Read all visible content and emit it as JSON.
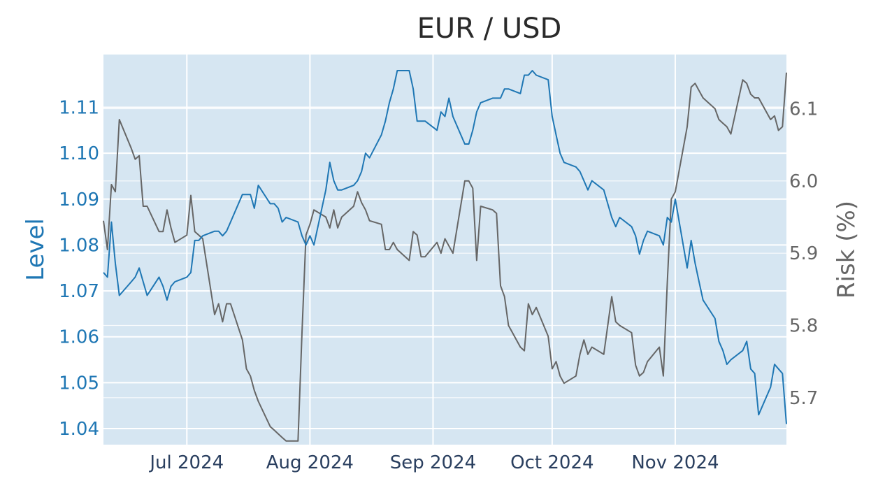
{
  "chart_data": {
    "type": "line",
    "title": "EUR / USD",
    "ylabel": "Level",
    "y2label": "Risk (%)",
    "ylim": [
      1.0365,
      1.1215
    ],
    "y2lim": [
      5.635,
      6.175
    ],
    "xlim": [
      "2024-06-10",
      "2024-11-29"
    ],
    "grid": true,
    "plot_background": "#d6e6f2",
    "yticks": [
      1.04,
      1.05,
      1.06,
      1.07,
      1.08,
      1.09,
      1.1,
      1.11
    ],
    "yticklabels": [
      "1.04",
      "1.05",
      "1.06",
      "1.07",
      "1.08",
      "1.09",
      "1.10",
      "1.11"
    ],
    "y2ticks": [
      5.7,
      5.8,
      5.9,
      6.0,
      6.1
    ],
    "y2ticklabels": [
      "5.7",
      "5.8",
      "5.9",
      "6.0",
      "6.1"
    ],
    "xticks": [
      "2024-07-01",
      "2024-08-01",
      "2024-09-01",
      "2024-10-01",
      "2024-11-01"
    ],
    "xticklabels": [
      "Jul 2024",
      "Aug 2024",
      "Sep 2024",
      "Oct 2024",
      "Nov 2024"
    ],
    "series": [
      {
        "axis": "left",
        "color": "#1f77b4",
        "x": [
          "2024-06-10",
          "2024-06-11",
          "2024-06-12",
          "2024-06-13",
          "2024-06-14",
          "2024-06-17",
          "2024-06-18",
          "2024-06-19",
          "2024-06-20",
          "2024-06-21",
          "2024-06-24",
          "2024-06-25",
          "2024-06-26",
          "2024-06-27",
          "2024-06-28",
          "2024-07-01",
          "2024-07-02",
          "2024-07-03",
          "2024-07-04",
          "2024-07-05",
          "2024-07-08",
          "2024-07-09",
          "2024-07-10",
          "2024-07-11",
          "2024-07-12",
          "2024-07-15",
          "2024-07-16",
          "2024-07-17",
          "2024-07-18",
          "2024-07-19",
          "2024-07-22",
          "2024-07-23",
          "2024-07-24",
          "2024-07-25",
          "2024-07-26",
          "2024-07-29",
          "2024-07-30",
          "2024-07-31",
          "2024-08-01",
          "2024-08-02",
          "2024-08-05",
          "2024-08-06",
          "2024-08-07",
          "2024-08-08",
          "2024-08-09",
          "2024-08-12",
          "2024-08-13",
          "2024-08-14",
          "2024-08-15",
          "2024-08-16",
          "2024-08-19",
          "2024-08-20",
          "2024-08-21",
          "2024-08-22",
          "2024-08-23",
          "2024-08-26",
          "2024-08-27",
          "2024-08-28",
          "2024-08-29",
          "2024-08-30",
          "2024-09-02",
          "2024-09-03",
          "2024-09-04",
          "2024-09-05",
          "2024-09-06",
          "2024-09-09",
          "2024-09-10",
          "2024-09-11",
          "2024-09-12",
          "2024-09-13",
          "2024-09-16",
          "2024-09-17",
          "2024-09-18",
          "2024-09-19",
          "2024-09-20",
          "2024-09-23",
          "2024-09-24",
          "2024-09-25",
          "2024-09-26",
          "2024-09-27",
          "2024-09-30",
          "2024-10-01",
          "2024-10-02",
          "2024-10-03",
          "2024-10-04",
          "2024-10-07",
          "2024-10-08",
          "2024-10-09",
          "2024-10-10",
          "2024-10-11",
          "2024-10-14",
          "2024-10-15",
          "2024-10-16",
          "2024-10-17",
          "2024-10-18",
          "2024-10-21",
          "2024-10-22",
          "2024-10-23",
          "2024-10-24",
          "2024-10-25",
          "2024-10-28",
          "2024-10-29",
          "2024-10-30",
          "2024-10-31",
          "2024-11-01",
          "2024-11-04",
          "2024-11-05",
          "2024-11-06",
          "2024-11-07",
          "2024-11-08",
          "2024-11-11",
          "2024-11-12",
          "2024-11-13",
          "2024-11-14",
          "2024-11-15",
          "2024-11-18",
          "2024-11-19",
          "2024-11-20",
          "2024-11-21",
          "2024-11-22",
          "2024-11-25",
          "2024-11-26",
          "2024-11-27",
          "2024-11-28",
          "2024-11-29"
        ],
        "values": [
          1.074,
          1.073,
          1.085,
          1.076,
          1.069,
          1.072,
          1.073,
          1.075,
          1.072,
          1.069,
          1.073,
          1.071,
          1.068,
          1.071,
          1.072,
          1.073,
          1.074,
          1.081,
          1.081,
          1.082,
          1.083,
          1.083,
          1.082,
          1.083,
          1.085,
          1.091,
          1.091,
          1.091,
          1.088,
          1.093,
          1.089,
          1.089,
          1.088,
          1.085,
          1.086,
          1.085,
          1.082,
          1.08,
          1.082,
          1.08,
          1.092,
          1.098,
          1.094,
          1.092,
          1.092,
          1.093,
          1.094,
          1.096,
          1.1,
          1.099,
          1.104,
          1.107,
          1.111,
          1.114,
          1.118,
          1.118,
          1.114,
          1.107,
          1.107,
          1.107,
          1.105,
          1.109,
          1.108,
          1.112,
          1.108,
          1.102,
          1.102,
          1.105,
          1.109,
          1.111,
          1.112,
          1.112,
          1.112,
          1.114,
          1.114,
          1.113,
          1.117,
          1.117,
          1.118,
          1.117,
          1.116,
          1.108,
          1.104,
          1.1,
          1.098,
          1.097,
          1.096,
          1.094,
          1.092,
          1.094,
          1.092,
          1.089,
          1.086,
          1.084,
          1.086,
          1.084,
          1.082,
          1.078,
          1.081,
          1.083,
          1.082,
          1.08,
          1.086,
          1.085,
          1.09,
          1.075,
          1.081,
          1.076,
          1.072,
          1.068,
          1.064,
          1.059,
          1.057,
          1.054,
          1.055,
          1.057,
          1.059,
          1.053,
          1.052,
          1.043,
          1.049,
          1.054,
          1.053,
          1.052,
          1.041
        ]
      },
      {
        "axis": "right",
        "color": "#666666",
        "x": [
          "2024-06-10",
          "2024-06-11",
          "2024-06-12",
          "2024-06-13",
          "2024-06-14",
          "2024-06-17",
          "2024-06-18",
          "2024-06-19",
          "2024-06-20",
          "2024-06-21",
          "2024-06-24",
          "2024-06-25",
          "2024-06-26",
          "2024-06-27",
          "2024-06-28",
          "2024-07-01",
          "2024-07-02",
          "2024-07-03",
          "2024-07-04",
          "2024-07-05",
          "2024-07-08",
          "2024-07-09",
          "2024-07-10",
          "2024-07-11",
          "2024-07-12",
          "2024-07-15",
          "2024-07-16",
          "2024-07-17",
          "2024-07-18",
          "2024-07-19",
          "2024-07-22",
          "2024-07-23",
          "2024-07-24",
          "2024-07-25",
          "2024-07-26",
          "2024-07-29",
          "2024-07-30",
          "2024-07-31",
          "2024-08-01",
          "2024-08-02",
          "2024-08-05",
          "2024-08-06",
          "2024-08-07",
          "2024-08-08",
          "2024-08-09",
          "2024-08-12",
          "2024-08-13",
          "2024-08-14",
          "2024-08-15",
          "2024-08-16",
          "2024-08-19",
          "2024-08-20",
          "2024-08-21",
          "2024-08-22",
          "2024-08-23",
          "2024-08-26",
          "2024-08-27",
          "2024-08-28",
          "2024-08-29",
          "2024-08-30",
          "2024-09-02",
          "2024-09-03",
          "2024-09-04",
          "2024-09-05",
          "2024-09-06",
          "2024-09-09",
          "2024-09-10",
          "2024-09-11",
          "2024-09-12",
          "2024-09-13",
          "2024-09-16",
          "2024-09-17",
          "2024-09-18",
          "2024-09-19",
          "2024-09-20",
          "2024-09-23",
          "2024-09-24",
          "2024-09-25",
          "2024-09-26",
          "2024-09-27",
          "2024-09-30",
          "2024-10-01",
          "2024-10-02",
          "2024-10-03",
          "2024-10-04",
          "2024-10-07",
          "2024-10-08",
          "2024-10-09",
          "2024-10-10",
          "2024-10-11",
          "2024-10-14",
          "2024-10-15",
          "2024-10-16",
          "2024-10-17",
          "2024-10-18",
          "2024-10-21",
          "2024-10-22",
          "2024-10-23",
          "2024-10-24",
          "2024-10-25",
          "2024-10-28",
          "2024-10-29",
          "2024-10-30",
          "2024-10-31",
          "2024-11-01",
          "2024-11-04",
          "2024-11-05",
          "2024-11-06",
          "2024-11-07",
          "2024-11-08",
          "2024-11-11",
          "2024-11-12",
          "2024-11-13",
          "2024-11-14",
          "2024-11-15",
          "2024-11-18",
          "2024-11-19",
          "2024-11-20",
          "2024-11-21",
          "2024-11-22",
          "2024-11-25",
          "2024-11-26",
          "2024-11-27",
          "2024-11-28",
          "2024-11-29"
        ],
        "values": [
          5.945,
          5.905,
          5.995,
          5.985,
          6.085,
          6.045,
          6.03,
          6.035,
          5.965,
          5.965,
          5.93,
          5.93,
          5.96,
          5.935,
          5.915,
          5.925,
          5.98,
          5.93,
          5.925,
          5.92,
          5.815,
          5.83,
          5.805,
          5.83,
          5.83,
          5.78,
          5.74,
          5.73,
          5.71,
          5.695,
          5.66,
          5.655,
          5.65,
          5.645,
          5.64,
          5.64,
          5.79,
          5.925,
          5.94,
          5.96,
          5.95,
          5.935,
          5.96,
          5.935,
          5.95,
          5.965,
          5.985,
          5.97,
          5.96,
          5.945,
          5.94,
          5.905,
          5.905,
          5.915,
          5.905,
          5.89,
          5.93,
          5.925,
          5.895,
          5.895,
          5.915,
          5.9,
          5.92,
          5.91,
          5.9,
          6.0,
          6.0,
          5.99,
          5.89,
          5.965,
          5.96,
          5.955,
          5.855,
          5.84,
          5.8,
          5.77,
          5.765,
          5.83,
          5.815,
          5.825,
          5.785,
          5.74,
          5.75,
          5.73,
          5.72,
          5.73,
          5.76,
          5.78,
          5.76,
          5.77,
          5.76,
          5.8,
          5.84,
          5.805,
          5.8,
          5.79,
          5.745,
          5.73,
          5.735,
          5.75,
          5.77,
          5.73,
          5.86,
          5.975,
          5.985,
          6.075,
          6.13,
          6.135,
          6.125,
          6.115,
          6.1,
          6.085,
          6.08,
          6.075,
          6.065,
          6.14,
          6.135,
          6.12,
          6.115,
          6.115,
          6.085,
          6.09,
          6.07,
          6.075,
          6.15
        ]
      }
    ]
  }
}
